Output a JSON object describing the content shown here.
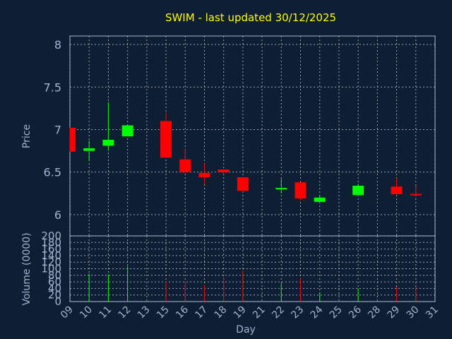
{
  "chart_data": {
    "type": "candlestick",
    "title": "SWIM - last updated 30/12/2025",
    "xlabel": "Day",
    "x_ticks": [
      "09",
      "10",
      "11",
      "12",
      "13",
      "15",
      "16",
      "17",
      "18",
      "19",
      "21",
      "22",
      "23",
      "24",
      "25",
      "26",
      "28",
      "29",
      "30",
      "31"
    ],
    "price_panel": {
      "ylabel": "Price",
      "ylim": [
        5.75,
        8.1
      ],
      "y_ticks": [
        "6",
        "6.5",
        "7",
        "7.5",
        "8"
      ],
      "grid": true
    },
    "volume_panel": {
      "ylabel": "Volume (0000)",
      "ylim": [
        0,
        200
      ],
      "y_ticks": [
        "0",
        "20",
        "40",
        "60",
        "80",
        "100",
        "120",
        "140",
        "160",
        "180",
        "200"
      ],
      "grid": true
    },
    "up_color": "#00ff00",
    "down_color": "#ff0000",
    "candles": [
      {
        "day": "09",
        "open": 7.02,
        "high": 7.02,
        "low": 6.74,
        "close": 6.74,
        "volume": 0
      },
      {
        "day": "10",
        "open": 6.75,
        "high": 6.87,
        "low": 6.63,
        "close": 6.78,
        "volume": 85
      },
      {
        "day": "11",
        "open": 6.81,
        "high": 7.32,
        "low": 6.75,
        "close": 6.88,
        "volume": 82
      },
      {
        "day": "12",
        "open": 6.92,
        "high": 7.06,
        "low": 6.92,
        "close": 7.05,
        "volume": 108
      },
      {
        "day": "15",
        "open": 7.1,
        "high": 7.2,
        "low": 6.67,
        "close": 6.67,
        "volume": 62
      },
      {
        "day": "16",
        "open": 6.65,
        "high": 6.78,
        "low": 6.49,
        "close": 6.5,
        "volume": 60
      },
      {
        "day": "17",
        "open": 6.49,
        "high": 6.6,
        "low": 6.36,
        "close": 6.44,
        "volume": 50
      },
      {
        "day": "18",
        "open": 6.53,
        "high": 6.53,
        "low": 6.49,
        "close": 6.5,
        "volume": 75
      },
      {
        "day": "19",
        "open": 6.44,
        "high": 6.44,
        "low": 6.28,
        "close": 6.28,
        "volume": 95
      },
      {
        "day": "22",
        "open": 6.3,
        "high": 6.42,
        "low": 6.25,
        "close": 6.31,
        "volume": 55
      },
      {
        "day": "23",
        "open": 6.38,
        "high": 6.38,
        "low": 6.17,
        "close": 6.19,
        "volume": 70
      },
      {
        "day": "24",
        "open": 6.15,
        "high": 6.22,
        "low": 6.15,
        "close": 6.2,
        "volume": 28
      },
      {
        "day": "26",
        "open": 6.23,
        "high": 6.36,
        "low": 6.23,
        "close": 6.34,
        "volume": 40
      },
      {
        "day": "29",
        "open": 6.33,
        "high": 6.43,
        "low": 6.24,
        "close": 6.24,
        "volume": 45
      },
      {
        "day": "30",
        "open": 6.24,
        "high": 6.34,
        "low": 6.22,
        "close": 6.23,
        "volume": 45
      }
    ]
  }
}
